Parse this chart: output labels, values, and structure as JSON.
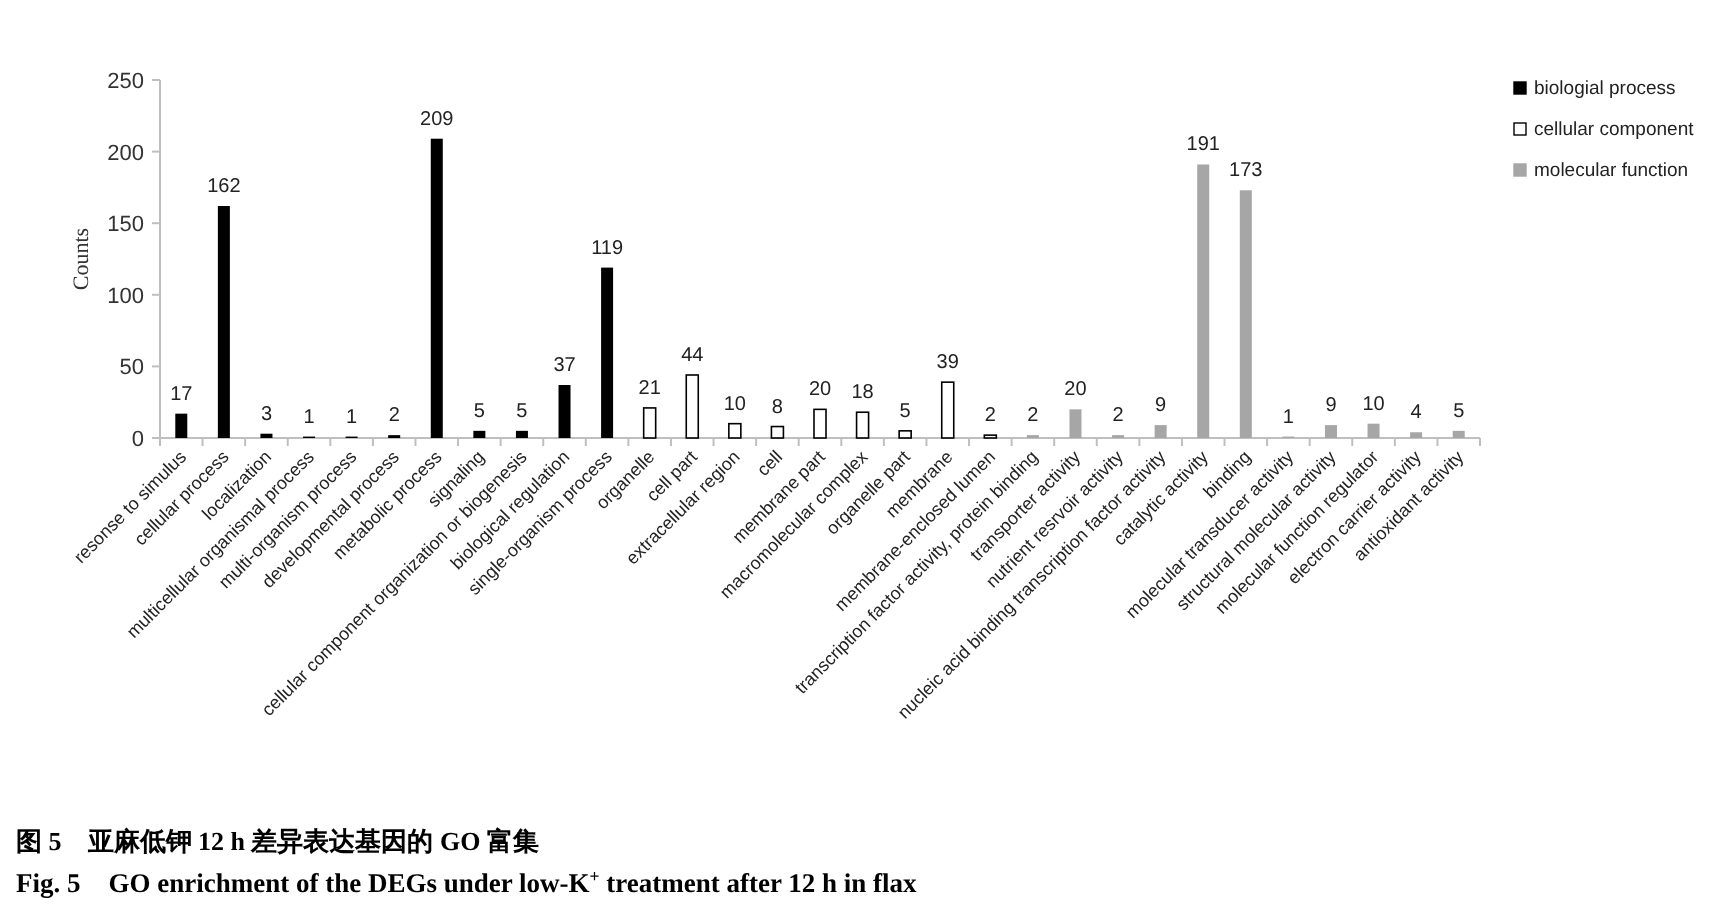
{
  "chart_data": {
    "type": "bar",
    "ylabel": "Counts",
    "categories": [
      "resonse to simulus",
      "cellular process",
      "localization",
      "multicellular organismal process",
      "multi-organism process",
      "developmental process",
      "metabolic process",
      "signaling",
      "cellular component organization or biogenesis",
      "biological regulation",
      "single-organism process",
      "organelle",
      "cell part",
      "extracellular region",
      "cell",
      "membrane part",
      "macromolecular complex",
      "organelle part",
      "membrane",
      "membrane-enclosed lumen",
      "transcription factor activity, protein binding",
      "transporter activity",
      "nutrient resrvoir activity",
      "nucleic acid binding transcription factor activity",
      "catalytic activity",
      "binding",
      "molecular transducer activity",
      "structural molecular activity",
      "molecular function regulator",
      "electron carrier activity",
      "antioxidant activity"
    ],
    "series": [
      {
        "name": "biologial process",
        "color": "#000000",
        "values": [
          17,
          162,
          3,
          1,
          1,
          2,
          209,
          5,
          5,
          37,
          119,
          null,
          null,
          null,
          null,
          null,
          null,
          null,
          null,
          null,
          null,
          null,
          null,
          null,
          null,
          null,
          null,
          null,
          null,
          null,
          null
        ]
      },
      {
        "name": "cellular component",
        "color": "#ffffff",
        "values": [
          null,
          null,
          null,
          null,
          null,
          null,
          null,
          null,
          null,
          null,
          null,
          21,
          44,
          10,
          8,
          20,
          18,
          5,
          39,
          2,
          null,
          null,
          null,
          null,
          null,
          null,
          null,
          null,
          null,
          null,
          null
        ]
      },
      {
        "name": "molecular function",
        "color": "#a6a6a6",
        "values": [
          null,
          null,
          null,
          null,
          null,
          null,
          null,
          null,
          null,
          null,
          null,
          null,
          null,
          null,
          null,
          null,
          null,
          null,
          null,
          null,
          2,
          20,
          2,
          9,
          191,
          173,
          1,
          9,
          10,
          4,
          5
        ]
      }
    ],
    "ylim": [
      0,
      250
    ],
    "yticks": [
      0,
      50,
      100,
      150,
      200,
      250
    ],
    "data_labels": true,
    "grid": false,
    "legend": "top right",
    "annotations": [
      "图 5　亚麻低钾 12 h 差异表达基因的 GO 富集",
      "Fig. 5　GO enrichment of the DEGs under low-K$^{+}$ treatment after 12 h in flax"
    ]
  }
}
